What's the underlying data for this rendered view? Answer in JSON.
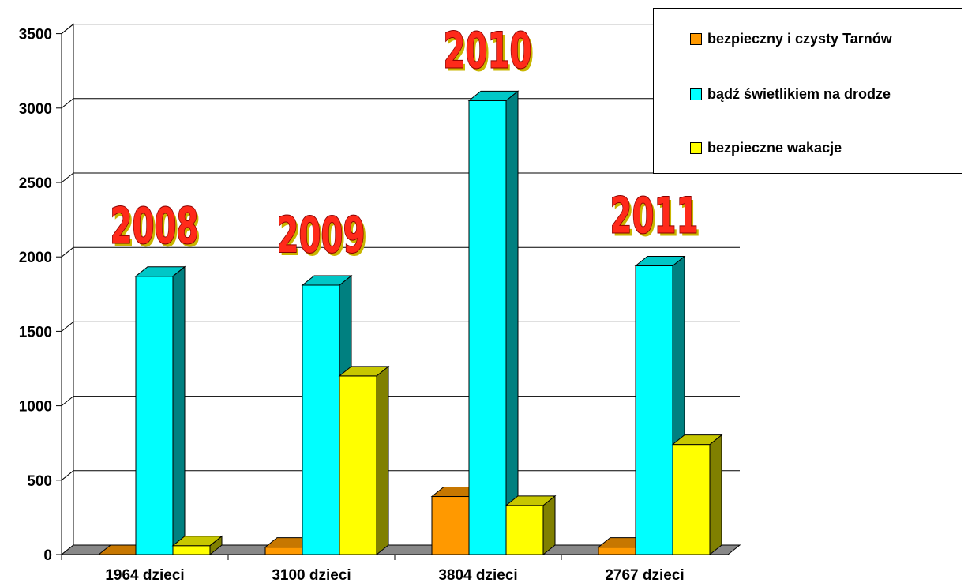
{
  "chart_data": {
    "type": "bar",
    "categories": [
      "1964 dzieci",
      "3100 dzieci",
      "3804 dzieci",
      "2767 dzieci"
    ],
    "year_labels": [
      "2008",
      "2009",
      "2010",
      "2011"
    ],
    "series": [
      {
        "name": "bezpieczny i czysty Tarnów",
        "color": "#ff9900",
        "values": [
          0,
          50,
          390,
          50
        ]
      },
      {
        "name": "bądź świetlikiem na drodze",
        "color": "#00ffff",
        "values": [
          1870,
          1810,
          3050,
          1940
        ]
      },
      {
        "name": "bezpieczne wakacje",
        "color": "#ffff00",
        "values": [
          60,
          1200,
          330,
          740
        ]
      }
    ],
    "ylim": [
      0,
      3500
    ],
    "yticks": [
      "0",
      "500",
      "1000",
      "1500",
      "2000",
      "2500",
      "3000",
      "3500"
    ],
    "grid": true,
    "legend_position": "top-right"
  }
}
